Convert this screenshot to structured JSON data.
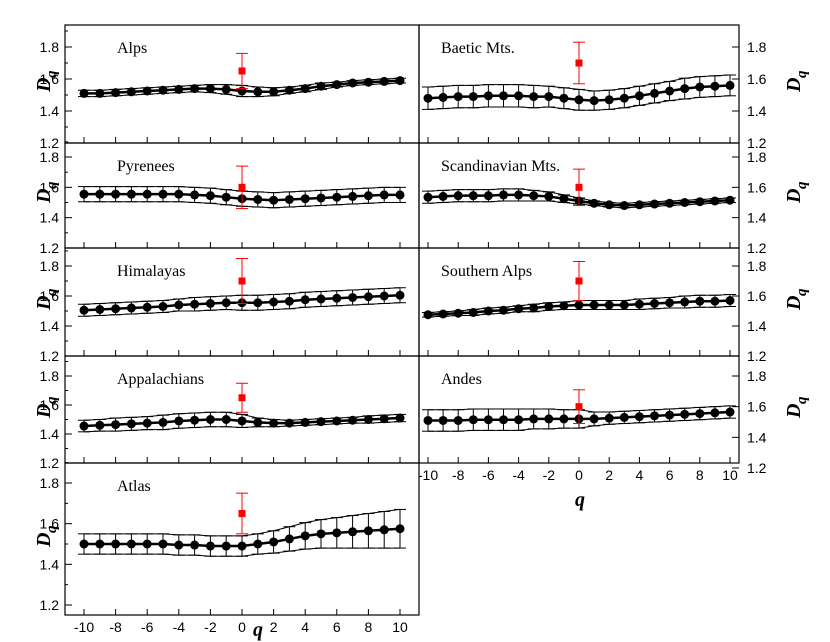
{
  "figure": {
    "xlabel": "q",
    "ylabel": "D",
    "ylabel_subscript": "q"
  },
  "chart_data": [
    {
      "title": "Alps",
      "type": "scatter",
      "xlabel": "q",
      "ylabel": "D_q",
      "xlim": [
        -11,
        11
      ],
      "ylim": [
        1.2,
        1.9
      ],
      "xticks": [
        "-10",
        "-8",
        "-6",
        "-4",
        "-2",
        "0",
        "2",
        "4",
        "6",
        "8",
        "10"
      ],
      "yticks": [
        "1.2",
        "1.4",
        "1.6",
        "1.8"
      ],
      "series": [
        {
          "color": "#000000",
          "marker": "circle",
          "x": [
            -10,
            -9,
            -8,
            -7,
            -6,
            -5,
            -4,
            -3,
            -2,
            -1,
            0,
            1,
            2,
            3,
            4,
            5,
            6,
            7,
            8,
            9,
            10
          ],
          "y": [
            1.51,
            1.51,
            1.515,
            1.52,
            1.525,
            1.53,
            1.535,
            1.54,
            1.54,
            1.535,
            1.525,
            1.52,
            1.52,
            1.53,
            1.54,
            1.555,
            1.565,
            1.575,
            1.58,
            1.585,
            1.59
          ],
          "err": [
            0.02,
            0.02,
            0.02,
            0.02,
            0.02,
            0.02,
            0.02,
            0.02,
            0.025,
            0.03,
            0.035,
            0.03,
            0.025,
            0.02,
            0.02,
            0.02,
            0.015,
            0.015,
            0.015,
            0.015,
            0.015
          ]
        },
        {
          "color": "#ff0000",
          "marker": "square",
          "x": [
            0
          ],
          "y": [
            1.65
          ],
          "err": [
            0.11
          ]
        }
      ]
    },
    {
      "title": "Baetic Mts.",
      "type": "scatter",
      "xlabel": "q",
      "ylabel": "D_q",
      "xlim": [
        -11,
        11
      ],
      "ylim": [
        1.2,
        1.9
      ],
      "xticks": [
        "-10",
        "-8",
        "-6",
        "-4",
        "-2",
        "0",
        "2",
        "4",
        "6",
        "8",
        "10"
      ],
      "yticks": [
        "1.2",
        "1.4",
        "1.6",
        "1.8"
      ],
      "series": [
        {
          "color": "#000000",
          "marker": "circle",
          "x": [
            -10,
            -9,
            -8,
            -7,
            -6,
            -5,
            -4,
            -3,
            -2,
            -1,
            0,
            1,
            2,
            3,
            4,
            5,
            6,
            7,
            8,
            9,
            10
          ],
          "y": [
            1.48,
            1.485,
            1.49,
            1.49,
            1.495,
            1.495,
            1.495,
            1.49,
            1.49,
            1.48,
            1.47,
            1.465,
            1.47,
            1.48,
            1.495,
            1.51,
            1.525,
            1.54,
            1.55,
            1.555,
            1.56
          ],
          "err": [
            0.07,
            0.07,
            0.07,
            0.07,
            0.07,
            0.07,
            0.07,
            0.07,
            0.065,
            0.065,
            0.065,
            0.06,
            0.06,
            0.06,
            0.06,
            0.06,
            0.06,
            0.065,
            0.065,
            0.065,
            0.065
          ]
        },
        {
          "color": "#ff0000",
          "marker": "square",
          "x": [
            0
          ],
          "y": [
            1.7
          ],
          "err": [
            0.13
          ]
        }
      ]
    },
    {
      "title": "Pyrenees",
      "type": "scatter",
      "xlabel": "q",
      "ylabel": "D_q",
      "xlim": [
        -11,
        11
      ],
      "ylim": [
        1.2,
        1.9
      ],
      "xticks": [
        "-10",
        "-8",
        "-6",
        "-4",
        "-2",
        "0",
        "2",
        "4",
        "6",
        "8",
        "10"
      ],
      "yticks": [
        "1.2",
        "1.4",
        "1.6",
        "1.8"
      ],
      "series": [
        {
          "color": "#000000",
          "marker": "circle",
          "x": [
            -10,
            -9,
            -8,
            -7,
            -6,
            -5,
            -4,
            -3,
            -2,
            -1,
            0,
            1,
            2,
            3,
            4,
            5,
            6,
            7,
            8,
            9,
            10
          ],
          "y": [
            1.555,
            1.555,
            1.555,
            1.555,
            1.555,
            1.555,
            1.555,
            1.55,
            1.545,
            1.535,
            1.525,
            1.52,
            1.515,
            1.52,
            1.525,
            1.53,
            1.535,
            1.54,
            1.545,
            1.55,
            1.55
          ],
          "err": [
            0.05,
            0.05,
            0.05,
            0.05,
            0.05,
            0.05,
            0.05,
            0.05,
            0.05,
            0.05,
            0.05,
            0.05,
            0.05,
            0.05,
            0.05,
            0.05,
            0.05,
            0.05,
            0.05,
            0.05,
            0.05
          ]
        },
        {
          "color": "#ff0000",
          "marker": "square",
          "x": [
            0
          ],
          "y": [
            1.6
          ],
          "err": [
            0.14
          ]
        }
      ]
    },
    {
      "title": "Scandinavian Mts.",
      "type": "scatter",
      "xlabel": "q",
      "ylabel": "D_q",
      "xlim": [
        -11,
        11
      ],
      "ylim": [
        1.2,
        1.9
      ],
      "xticks": [
        "-10",
        "-8",
        "-6",
        "-4",
        "-2",
        "0",
        "2",
        "4",
        "6",
        "8",
        "10"
      ],
      "yticks": [
        "1.2",
        "1.4",
        "1.6",
        "1.8"
      ],
      "series": [
        {
          "color": "#000000",
          "marker": "circle",
          "x": [
            -10,
            -9,
            -8,
            -7,
            -6,
            -5,
            -4,
            -3,
            -2,
            -1,
            0,
            1,
            2,
            3,
            4,
            5,
            6,
            7,
            8,
            9,
            10
          ],
          "y": [
            1.535,
            1.54,
            1.545,
            1.545,
            1.545,
            1.55,
            1.55,
            1.545,
            1.54,
            1.525,
            1.51,
            1.495,
            1.485,
            1.48,
            1.485,
            1.49,
            1.495,
            1.5,
            1.505,
            1.51,
            1.515
          ],
          "err": [
            0.04,
            0.04,
            0.04,
            0.04,
            0.04,
            0.04,
            0.04,
            0.035,
            0.03,
            0.025,
            0.02,
            0.015,
            0.015,
            0.015,
            0.015,
            0.015,
            0.015,
            0.015,
            0.015,
            0.015,
            0.015
          ]
        },
        {
          "color": "#ff0000",
          "marker": "square",
          "x": [
            0
          ],
          "y": [
            1.6
          ],
          "err": [
            0.12
          ]
        }
      ]
    },
    {
      "title": "Himalayas",
      "type": "scatter",
      "xlabel": "q",
      "ylabel": "D_q",
      "xlim": [
        -11,
        11
      ],
      "ylim": [
        1.2,
        1.9
      ],
      "xticks": [
        "-10",
        "-8",
        "-6",
        "-4",
        "-2",
        "0",
        "2",
        "4",
        "6",
        "8",
        "10"
      ],
      "yticks": [
        "1.2",
        "1.4",
        "1.6",
        "1.8"
      ],
      "series": [
        {
          "color": "#000000",
          "marker": "circle",
          "x": [
            -10,
            -9,
            -8,
            -7,
            -6,
            -5,
            -4,
            -3,
            -2,
            -1,
            0,
            1,
            2,
            3,
            4,
            5,
            6,
            7,
            8,
            9,
            10
          ],
          "y": [
            1.505,
            1.51,
            1.515,
            1.52,
            1.525,
            1.53,
            1.54,
            1.545,
            1.55,
            1.555,
            1.555,
            1.555,
            1.56,
            1.565,
            1.575,
            1.58,
            1.585,
            1.59,
            1.595,
            1.6,
            1.605
          ],
          "err": [
            0.04,
            0.04,
            0.04,
            0.04,
            0.04,
            0.04,
            0.04,
            0.045,
            0.045,
            0.045,
            0.05,
            0.05,
            0.05,
            0.05,
            0.05,
            0.05,
            0.05,
            0.05,
            0.05,
            0.05,
            0.05
          ]
        },
        {
          "color": "#ff0000",
          "marker": "square",
          "x": [
            0
          ],
          "y": [
            1.7
          ],
          "err": [
            0.15
          ]
        }
      ]
    },
    {
      "title": "Southern Alps",
      "type": "scatter",
      "xlabel": "q",
      "ylabel": "D_q",
      "xlim": [
        -11,
        11
      ],
      "ylim": [
        1.2,
        1.9
      ],
      "xticks": [
        "-10",
        "-8",
        "-6",
        "-4",
        "-2",
        "0",
        "2",
        "4",
        "6",
        "8",
        "10"
      ],
      "yticks": [
        "1.2",
        "1.4",
        "1.6",
        "1.8"
      ],
      "series": [
        {
          "color": "#000000",
          "marker": "circle",
          "x": [
            -10,
            -9,
            -8,
            -7,
            -6,
            -5,
            -4,
            -3,
            -2,
            -1,
            0,
            1,
            2,
            3,
            4,
            5,
            6,
            7,
            8,
            9,
            10
          ],
          "y": [
            1.475,
            1.48,
            1.485,
            1.49,
            1.5,
            1.505,
            1.515,
            1.52,
            1.53,
            1.535,
            1.54,
            1.54,
            1.54,
            1.54,
            1.545,
            1.55,
            1.555,
            1.56,
            1.565,
            1.565,
            1.57
          ],
          "err": [
            0.015,
            0.015,
            0.015,
            0.02,
            0.02,
            0.02,
            0.02,
            0.025,
            0.025,
            0.025,
            0.03,
            0.03,
            0.03,
            0.03,
            0.035,
            0.035,
            0.035,
            0.04,
            0.04,
            0.04,
            0.04
          ]
        },
        {
          "color": "#ff0000",
          "marker": "square",
          "x": [
            0
          ],
          "y": [
            1.7
          ],
          "err": [
            0.13
          ]
        }
      ]
    },
    {
      "title": "Appalachians",
      "type": "scatter",
      "xlabel": "q",
      "ylabel": "D_q",
      "xlim": [
        -11,
        11
      ],
      "ylim": [
        1.2,
        1.9
      ],
      "xticks": [
        "-10",
        "-8",
        "-6",
        "-4",
        "-2",
        "0",
        "2",
        "4",
        "6",
        "8",
        "10"
      ],
      "yticks": [
        "1.2",
        "1.4",
        "1.6",
        "1.8"
      ],
      "series": [
        {
          "color": "#000000",
          "marker": "circle",
          "x": [
            -10,
            -9,
            -8,
            -7,
            -6,
            -5,
            -4,
            -3,
            -2,
            -1,
            0,
            1,
            2,
            3,
            4,
            5,
            6,
            7,
            8,
            9,
            10
          ],
          "y": [
            1.455,
            1.46,
            1.465,
            1.47,
            1.475,
            1.48,
            1.49,
            1.495,
            1.5,
            1.5,
            1.49,
            1.48,
            1.475,
            1.475,
            1.48,
            1.485,
            1.49,
            1.495,
            1.5,
            1.505,
            1.51
          ],
          "err": [
            0.04,
            0.04,
            0.045,
            0.045,
            0.045,
            0.05,
            0.05,
            0.05,
            0.05,
            0.05,
            0.045,
            0.03,
            0.025,
            0.02,
            0.02,
            0.02,
            0.02,
            0.02,
            0.025,
            0.025,
            0.025
          ]
        },
        {
          "color": "#ff0000",
          "marker": "square",
          "x": [
            0
          ],
          "y": [
            1.65
          ],
          "err": [
            0.1
          ]
        }
      ]
    },
    {
      "title": "Andes",
      "type": "scatter",
      "xlabel": "q",
      "ylabel": "D_q",
      "xlim": [
        -11,
        11
      ],
      "ylim": [
        1.2,
        1.9
      ],
      "xticks": [
        "-10",
        "-8",
        "-6",
        "-4",
        "-2",
        "0",
        "2",
        "4",
        "6",
        "8",
        "10"
      ],
      "yticks": [
        "1.2",
        "1.4",
        "1.6",
        "1.8"
      ],
      "series": [
        {
          "color": "#000000",
          "marker": "circle",
          "x": [
            -10,
            -9,
            -8,
            -7,
            -6,
            -5,
            -4,
            -3,
            -2,
            -1,
            0,
            1,
            2,
            3,
            4,
            5,
            6,
            7,
            8,
            9,
            10
          ],
          "y": [
            1.51,
            1.51,
            1.51,
            1.515,
            1.515,
            1.515,
            1.515,
            1.52,
            1.52,
            1.52,
            1.52,
            1.52,
            1.525,
            1.53,
            1.535,
            1.54,
            1.545,
            1.55,
            1.555,
            1.56,
            1.565
          ],
          "err": [
            0.07,
            0.07,
            0.07,
            0.07,
            0.07,
            0.07,
            0.07,
            0.065,
            0.065,
            0.06,
            0.06,
            0.045,
            0.04,
            0.04,
            0.04,
            0.04,
            0.04,
            0.04,
            0.04,
            0.04,
            0.04
          ]
        },
        {
          "color": "#ff0000",
          "marker": "square",
          "x": [
            0
          ],
          "y": [
            1.6
          ],
          "err": [
            0.11
          ]
        }
      ]
    },
    {
      "title": "Atlas",
      "type": "scatter",
      "xlabel": "q",
      "ylabel": "D_q",
      "xlim": [
        -11,
        11
      ],
      "ylim": [
        1.2,
        1.9
      ],
      "xticks": [
        "-10",
        "-8",
        "-6",
        "-4",
        "-2",
        "0",
        "2",
        "4",
        "6",
        "8",
        "10"
      ],
      "yticks": [
        "1.2",
        "1.4",
        "1.6",
        "1.8"
      ],
      "series": [
        {
          "color": "#000000",
          "marker": "circle",
          "x": [
            -10,
            -9,
            -8,
            -7,
            -6,
            -5,
            -4,
            -3,
            -2,
            -1,
            0,
            1,
            2,
            3,
            4,
            5,
            6,
            7,
            8,
            9,
            10
          ],
          "y": [
            1.5,
            1.5,
            1.5,
            1.5,
            1.5,
            1.5,
            1.495,
            1.495,
            1.49,
            1.49,
            1.49,
            1.5,
            1.51,
            1.525,
            1.54,
            1.55,
            1.555,
            1.56,
            1.565,
            1.57,
            1.575
          ],
          "err": [
            0.05,
            0.05,
            0.05,
            0.05,
            0.05,
            0.05,
            0.05,
            0.05,
            0.05,
            0.05,
            0.05,
            0.05,
            0.055,
            0.06,
            0.065,
            0.07,
            0.075,
            0.08,
            0.085,
            0.09,
            0.095
          ]
        },
        {
          "color": "#ff0000",
          "marker": "square",
          "x": [
            0
          ],
          "y": [
            1.65
          ],
          "err": [
            0.1
          ]
        }
      ]
    }
  ]
}
